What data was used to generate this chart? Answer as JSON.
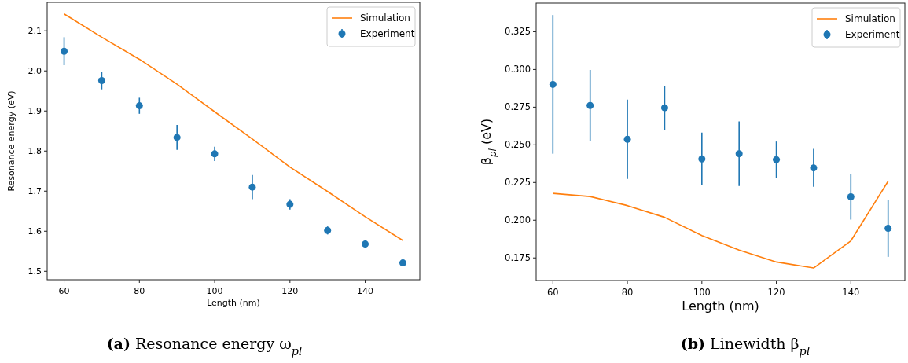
{
  "chart_data": [
    {
      "type": "line",
      "xlabel": "Length (nm)",
      "ylabel": "Resonance energy (eV)",
      "annotations": [
        "(a) Resonance energy ω$_{pl}$"
      ],
      "x": [
        60,
        70,
        80,
        90,
        100,
        110,
        120,
        130,
        140,
        150
      ],
      "xlim": [
        55.5,
        154.5
      ],
      "xticks": [
        60,
        80,
        100,
        120,
        140
      ],
      "ylim": [
        1.479,
        2.171
      ],
      "yticks": [
        {
          "value": 1.5,
          "label": "1.5"
        },
        {
          "value": 1.6,
          "label": "1.6"
        },
        {
          "value": 1.7,
          "label": "1.7"
        },
        {
          "value": 1.8,
          "label": "1.8"
        },
        {
          "value": 1.9,
          "label": "1.9"
        },
        {
          "value": 2.0,
          "label": "2.0"
        },
        {
          "value": 2.1,
          "label": "2.1"
        }
      ],
      "legend": "top right",
      "grid": false,
      "series": [
        {
          "name": "Simulation",
          "color": "#ff7f0e",
          "values": [
            2.142,
            2.084,
            2.029,
            1.967,
            1.898,
            1.83,
            1.76,
            1.699,
            1.636,
            1.577
          ]
        },
        {
          "name": "Experiment",
          "type": "scatter",
          "marker": "circle",
          "color": "#1f77b4",
          "values": [
            2.049,
            1.976,
            1.913,
            1.834,
            1.793,
            1.71,
            1.667,
            1.602,
            1.568,
            1.521
          ],
          "errors": [
            0.035,
            0.022,
            0.02,
            0.031,
            0.018,
            0.03,
            0.013,
            0.01,
            0.009,
            0.008
          ]
        }
      ]
    },
    {
      "type": "line",
      "xlabel": "Length (nm)",
      "ylabel": "β$_{pl}$ (eV)",
      "annotations": [
        "(b) Linewidth β$_{pl}$"
      ],
      "x": [
        60,
        70,
        80,
        90,
        100,
        110,
        120,
        130,
        140,
        150
      ],
      "xlim": [
        55.5,
        154.5
      ],
      "xticks": [
        60,
        80,
        100,
        120,
        140
      ],
      "ylim": [
        0.16,
        0.344
      ],
      "yticks": [
        {
          "value": 0.175,
          "label": "0.175"
        },
        {
          "value": 0.2,
          "label": "0.200"
        },
        {
          "value": 0.225,
          "label": "0.225"
        },
        {
          "value": 0.25,
          "label": "0.250"
        },
        {
          "value": 0.275,
          "label": "0.275"
        },
        {
          "value": 0.3,
          "label": "0.300"
        },
        {
          "value": 0.325,
          "label": "0.325"
        }
      ],
      "legend": "top right",
      "grid": false,
      "series": [
        {
          "name": "Simulation",
          "color": "#ff7f0e",
          "values": [
            0.2178,
            0.2157,
            0.2097,
            0.2019,
            0.1898,
            0.1802,
            0.1723,
            0.1683,
            0.1863,
            0.2258
          ]
        },
        {
          "name": "Experiment",
          "type": "scatter",
          "marker": "circle",
          "color": "#1f77b4",
          "values": [
            0.2901,
            0.2761,
            0.2537,
            0.2746,
            0.2406,
            0.2441,
            0.2402,
            0.2347,
            0.2155,
            0.1946
          ],
          "errors": [
            0.046,
            0.0236,
            0.0263,
            0.0146,
            0.0175,
            0.0214,
            0.012,
            0.0126,
            0.0151,
            0.0189
          ]
        }
      ]
    }
  ]
}
